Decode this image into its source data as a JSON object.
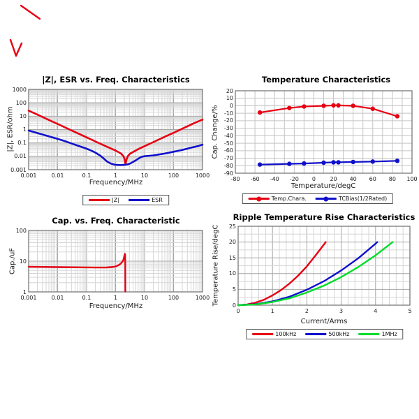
{
  "colors": {
    "red": "#e60012",
    "blue": "#1010cc",
    "green": "#00dd2a",
    "grid_minor": "#d6d6d6",
    "grid_major": "#a5a5a5",
    "grid_uniform": "#c4c4c4",
    "plot_border": "#6e6e6e",
    "text": "#1a1a1a",
    "title": "#000000"
  },
  "stray_marks": {
    "color": "#e60012",
    "polylines": [
      [
        [
          30,
          8
        ],
        [
          57,
          27
        ]
      ],
      [
        [
          15,
          57
        ],
        [
          23,
          80
        ],
        [
          31,
          62
        ]
      ]
    ]
  },
  "chart_data": [
    {
      "type": "line",
      "title": "|Z|, ESR vs. Freq. Characteristics",
      "xlabel": "Frequency/MHz",
      "ylabel": "|Z|, ESR/ohm",
      "xscale": "log",
      "yscale": "log",
      "xlim": [
        0.001,
        1000
      ],
      "ylim": [
        0.001,
        1000
      ],
      "xticks": [
        0.001,
        0.01,
        0.1,
        1,
        10,
        100,
        1000
      ],
      "xtick_labels": [
        "0.001",
        "0.01",
        "0.1",
        "1",
        "10",
        "100",
        "1000"
      ],
      "yticks": [
        1000,
        100,
        10,
        1,
        0.1,
        0.01,
        0.001
      ],
      "ytick_labels": [
        "1000",
        "100",
        "10",
        "1",
        "0.1",
        "0.01",
        "0.001"
      ],
      "grid": true,
      "legend_position": "bottom",
      "series": [
        {
          "name": "|Z|",
          "color": "red",
          "markers": false,
          "x": [
            0.001,
            0.002,
            0.005,
            0.01,
            0.02,
            0.05,
            0.1,
            0.2,
            0.5,
            1,
            1.3,
            1.6,
            1.9,
            2.05,
            2.2,
            2.4,
            2.7,
            3.2,
            4,
            6,
            10,
            20,
            50,
            100,
            200,
            500,
            1000
          ],
          "y": [
            26,
            13,
            5.2,
            2.6,
            1.3,
            0.52,
            0.26,
            0.13,
            0.052,
            0.027,
            0.02,
            0.015,
            0.0095,
            0.006,
            0.0026,
            0.006,
            0.011,
            0.016,
            0.021,
            0.034,
            0.057,
            0.115,
            0.29,
            0.57,
            1.15,
            2.9,
            5.5
          ]
        },
        {
          "name": "ESR",
          "color": "blue",
          "markers": false,
          "x": [
            0.001,
            0.002,
            0.005,
            0.01,
            0.02,
            0.05,
            0.1,
            0.15,
            0.2,
            0.3,
            0.4,
            0.5,
            0.7,
            1,
            1.5,
            2,
            2.6,
            3.2,
            4,
            5,
            6,
            7,
            8,
            10,
            15,
            20,
            30,
            50,
            100,
            200,
            400,
            700,
            1000
          ],
          "y": [
            0.85,
            0.55,
            0.31,
            0.2,
            0.125,
            0.062,
            0.037,
            0.026,
            0.019,
            0.011,
            0.0065,
            0.0042,
            0.0028,
            0.0023,
            0.0022,
            0.0023,
            0.0025,
            0.0029,
            0.0038,
            0.005,
            0.0065,
            0.008,
            0.0092,
            0.0102,
            0.011,
            0.0118,
            0.0135,
            0.016,
            0.022,
            0.03,
            0.044,
            0.058,
            0.075
          ]
        }
      ]
    },
    {
      "type": "line",
      "title": "Temperature Characteristics",
      "xlabel": "Temperature/degC",
      "ylabel": "Cap. Change/%",
      "xscale": "linear",
      "yscale": "linear",
      "xlim": [
        -80,
        100
      ],
      "ylim": [
        -90,
        20
      ],
      "xticks": [
        -80,
        -60,
        -40,
        -20,
        0,
        20,
        40,
        60,
        80,
        100
      ],
      "xtick_labels": [
        "-80",
        "-60",
        "-40",
        "-20",
        "0",
        "20",
        "40",
        "60",
        "80",
        "100"
      ],
      "yticks": [
        20,
        10,
        0,
        -10,
        -20,
        -30,
        -40,
        -50,
        -60,
        -70,
        -80,
        -90
      ],
      "ytick_labels": [
        "20",
        "10",
        "0",
        "-10",
        "-20",
        "-30",
        "-40",
        "-50",
        "-60",
        "-70",
        "-80",
        "-90"
      ],
      "grid": true,
      "grid_x": {
        "step": 10
      },
      "grid_y": {
        "step": 10
      },
      "legend_position": "bottom",
      "series": [
        {
          "name": "Temp.Chara.",
          "color": "red",
          "markers": true,
          "x": [
            -55,
            -25,
            -10,
            10,
            20,
            25,
            40,
            60,
            85
          ],
          "y": [
            -9,
            -3,
            -1,
            0,
            0.5,
            0.5,
            0,
            -4,
            -14
          ]
        },
        {
          "name": "TCBias(1/2Rated)",
          "color": "blue",
          "markers": true,
          "x": [
            -55,
            -25,
            -10,
            10,
            20,
            25,
            40,
            60,
            85
          ],
          "y": [
            -78.5,
            -77.5,
            -77,
            -76,
            -75.5,
            -75.5,
            -75,
            -74.5,
            -73.5
          ]
        }
      ]
    },
    {
      "type": "line",
      "title": "Cap. vs. Freq. Characteristic",
      "xlabel": "Frequency/MHz",
      "ylabel": "Cap./uF",
      "xscale": "log",
      "yscale": "log",
      "xlim": [
        0.001,
        1000
      ],
      "ylim": [
        1,
        100
      ],
      "xticks": [
        0.001,
        0.01,
        0.1,
        1,
        10,
        100,
        1000
      ],
      "xtick_labels": [
        "0.001",
        "0.01",
        "0.1",
        "1",
        "10",
        "100",
        "1000"
      ],
      "yticks": [
        100,
        10,
        1
      ],
      "ytick_labels": [
        "100",
        "10",
        "1"
      ],
      "grid": true,
      "legend_position": "none",
      "series": [
        {
          "name": "Cap.",
          "color": "red",
          "markers": false,
          "x": [
            0.001,
            0.003,
            0.01,
            0.03,
            0.1,
            0.2,
            0.35,
            0.5,
            0.7,
            0.9,
            1.1,
            1.3,
            1.5,
            1.7,
            1.85,
            1.95,
            2.03,
            2.1,
            2.14,
            2.16,
            2.18
          ],
          "y": [
            6.6,
            6.5,
            6.42,
            6.33,
            6.27,
            6.22,
            6.2,
            6.25,
            6.4,
            6.6,
            6.95,
            7.5,
            8.3,
            9.5,
            11,
            13,
            15.5,
            17.3,
            16,
            6,
            1.02
          ]
        }
      ]
    },
    {
      "type": "line",
      "title": "Ripple Temperature Rise Characteristics",
      "xlabel": "Current/Arms",
      "ylabel": "Temperature Rise/degC",
      "xscale": "linear",
      "yscale": "linear",
      "xlim": [
        0,
        5
      ],
      "ylim": [
        0,
        25
      ],
      "xticks": [
        0,
        1,
        2,
        3,
        4,
        5
      ],
      "xtick_labels": [
        "0",
        "1",
        "2",
        "3",
        "4",
        "5"
      ],
      "yticks": [
        25,
        20,
        15,
        10,
        5,
        0
      ],
      "ytick_labels": [
        "25",
        "20",
        "15",
        "10",
        "5",
        "0"
      ],
      "grid": true,
      "grid_x": {
        "step": 0.2,
        "major": 1
      },
      "grid_y": {
        "step": 2.5,
        "major": 5
      },
      "legend_position": "bottom",
      "series": [
        {
          "name": "100kHz",
          "color": "red",
          "markers": false,
          "x": [
            0,
            0.25,
            0.5,
            0.75,
            1,
            1.25,
            1.5,
            1.75,
            2,
            2.25,
            2.55
          ],
          "y": [
            0,
            0.2,
            0.8,
            1.7,
            3.1,
            4.8,
            6.9,
            9.4,
            12.3,
            15.7,
            20
          ]
        },
        {
          "name": "500kHz",
          "color": "blue",
          "markers": false,
          "x": [
            0,
            0.5,
            1,
            1.5,
            2,
            2.5,
            3,
            3.5,
            4,
            4.05
          ],
          "y": [
            0,
            0.3,
            1.2,
            2.7,
            4.9,
            7.6,
            11,
            14.9,
            19.5,
            20
          ]
        },
        {
          "name": "1MHz",
          "color": "green",
          "markers": false,
          "x": [
            0,
            0.5,
            1,
            1.5,
            2,
            2.5,
            3,
            3.5,
            4,
            4.5
          ],
          "y": [
            0,
            0.25,
            1,
            2.2,
            4,
            6.2,
            8.9,
            12.1,
            15.8,
            20
          ]
        }
      ]
    }
  ]
}
